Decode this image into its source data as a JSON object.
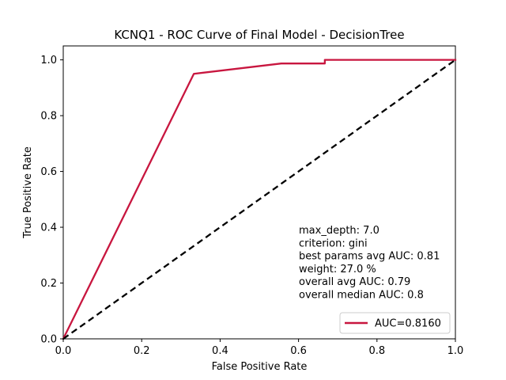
{
  "chart_data": {
    "type": "line",
    "title": "KCNQ1 - ROC Curve of Final Model - DecisionTree",
    "xlabel": "False Positive Rate",
    "ylabel": "True Positive Rate",
    "xlim": [
      0,
      1
    ],
    "ylim": [
      0,
      1.05
    ],
    "xticks": [
      0.0,
      0.2,
      0.4,
      0.6,
      0.8,
      1.0
    ],
    "yticks": [
      0.0,
      0.2,
      0.4,
      0.6,
      0.8,
      1.0
    ],
    "xtick_labels": [
      "0.0",
      "0.2",
      "0.4",
      "0.6",
      "0.8",
      "1.0"
    ],
    "ytick_labels": [
      "0.0",
      "0.2",
      "0.4",
      "0.6",
      "0.8",
      "1.0"
    ],
    "grid": false,
    "legend_position": "lower-right",
    "series": [
      {
        "name": "AUC=0.8160",
        "color": "#c8163f",
        "style": "solid",
        "x": [
          0.0,
          0.333,
          0.556,
          0.667,
          0.667,
          1.0
        ],
        "y": [
          0.0,
          0.95,
          0.987,
          0.987,
          1.0,
          1.0
        ]
      },
      {
        "color": "#000000",
        "style": "dashed",
        "x": [
          0.0,
          1.0
        ],
        "y": [
          0.0,
          1.0
        ]
      }
    ],
    "annotation_lines": [
      "max_depth: 7.0",
      "criterion: gini",
      "best params avg AUC: 0.81",
      "weight: 27.0 %",
      "overall avg AUC: 0.79",
      "overall median AUC: 0.8"
    ]
  }
}
